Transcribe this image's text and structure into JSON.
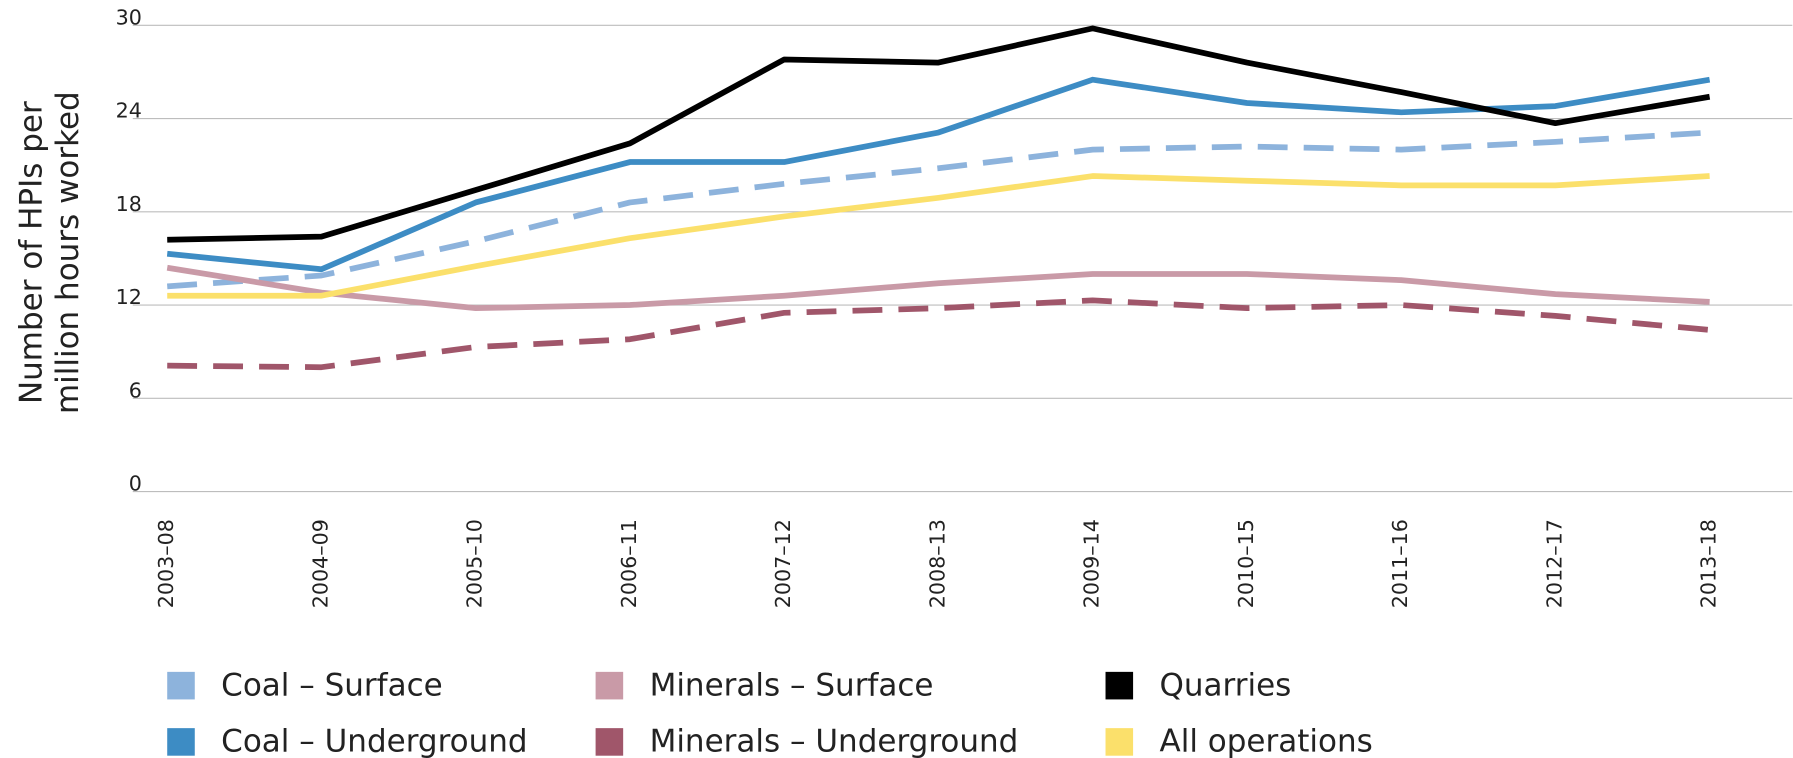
{
  "chart_data": {
    "type": "line",
    "y_label": [
      "Number of HPIs per",
      "million hours worked"
    ],
    "categories": [
      "2003–08",
      "2004–09",
      "2005–10",
      "2006–11",
      "2007–12",
      "2008–13",
      "2009–14",
      "2010–15",
      "2011–16",
      "2012–17",
      "2013–18"
    ],
    "ylim": [
      0,
      30
    ],
    "yticks": [
      0,
      6,
      12,
      18,
      24,
      30
    ],
    "grid": true,
    "series": [
      {
        "name": "Coal – Surface",
        "color": "#8db3dc",
        "dashed": true,
        "values": [
          13.2,
          13.9,
          16.1,
          18.6,
          19.8,
          20.8,
          22.0,
          22.2,
          22.0,
          22.5,
          23.1
        ]
      },
      {
        "name": "Coal – Underground",
        "color": "#3d8cc4",
        "dashed": false,
        "values": [
          15.3,
          14.3,
          18.6,
          21.2,
          21.2,
          23.1,
          26.5,
          25.0,
          24.4,
          24.8,
          26.5
        ]
      },
      {
        "name": "Minerals – Surface",
        "color": "#c99aa7",
        "dashed": false,
        "values": [
          14.4,
          12.8,
          11.8,
          12.0,
          12.6,
          13.4,
          14.0,
          14.0,
          13.6,
          12.7,
          12.2
        ]
      },
      {
        "name": "Minerals – Underground",
        "color": "#a0566a",
        "dashed": true,
        "values": [
          8.1,
          8.0,
          9.3,
          9.8,
          11.5,
          11.8,
          12.3,
          11.8,
          12.0,
          11.3,
          10.4
        ]
      },
      {
        "name": "Quarries",
        "color": "#000000",
        "dashed": false,
        "values": [
          16.2,
          16.4,
          19.4,
          22.4,
          27.8,
          27.6,
          29.8,
          27.6,
          25.7,
          23.7,
          25.4
        ]
      },
      {
        "name": "All operations",
        "color": "#fbe06b",
        "dashed": false,
        "values": [
          12.6,
          12.6,
          14.5,
          16.3,
          17.7,
          18.9,
          20.3,
          20.0,
          19.7,
          19.7,
          20.3
        ]
      }
    ]
  }
}
